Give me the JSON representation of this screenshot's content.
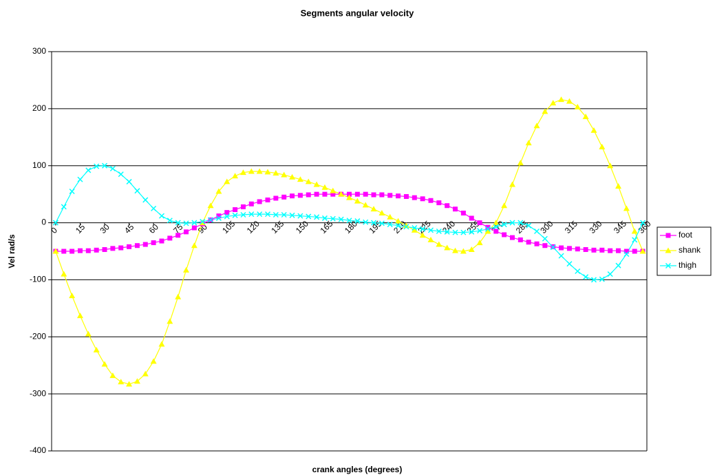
{
  "chart_data": {
    "type": "line",
    "title": "Segments angular velocity",
    "x_label": "crank angles (degrees)",
    "y_label": "Vel rad/s",
    "categories": [
      "0",
      null,
      null,
      "15",
      null,
      null,
      "30",
      null,
      null,
      "45",
      null,
      null,
      "60",
      null,
      null,
      "75",
      null,
      null,
      "90",
      null,
      null,
      "105",
      null,
      null,
      "120",
      null,
      null,
      "135",
      null,
      null,
      "150",
      null,
      null,
      "165",
      null,
      null,
      "180",
      null,
      null,
      "195",
      null,
      null,
      "210",
      null,
      null,
      "225",
      null,
      null,
      "240",
      null,
      null,
      "255",
      null,
      null,
      "270",
      null,
      null,
      "285",
      null,
      null,
      "300",
      null,
      null,
      "315",
      null,
      null,
      "330",
      null,
      null,
      "345",
      null,
      null,
      "360"
    ],
    "series": [
      {
        "name": "foot",
        "color": "#ff00ff",
        "marker": "square",
        "values": [
          -50,
          -50,
          -50,
          -49,
          -49,
          -48,
          -47,
          -45,
          -44,
          -42,
          -40,
          -38,
          -35,
          -32,
          -27,
          -22,
          -16,
          -9,
          -2,
          5,
          12,
          18,
          23,
          28,
          33,
          37,
          40,
          43,
          45,
          47,
          48,
          49,
          50,
          50,
          50,
          50,
          50,
          50,
          50,
          49,
          49,
          48,
          47,
          46,
          44,
          42,
          39,
          35,
          30,
          24,
          17,
          8,
          0,
          -8,
          -15,
          -21,
          -26,
          -30,
          -34,
          -37,
          -40,
          -42,
          -44,
          -45,
          -46,
          -47,
          -48,
          -48,
          -49,
          -49,
          -50,
          -50,
          -50
        ]
      },
      {
        "name": "shank",
        "color": "#ffff00",
        "marker": "triangle",
        "values": [
          -50,
          -90,
          -128,
          -163,
          -195,
          -223,
          -248,
          -268,
          -279,
          -283,
          -278,
          -265,
          -243,
          -213,
          -173,
          -130,
          -83,
          -40,
          0,
          30,
          55,
          72,
          82,
          88,
          90,
          90,
          89,
          87,
          84,
          80,
          76,
          72,
          67,
          62,
          56,
          50,
          44,
          38,
          31,
          24,
          17,
          10,
          3,
          -5,
          -13,
          -22,
          -30,
          -38,
          -44,
          -49,
          -50,
          -47,
          -35,
          -15,
          0,
          30,
          67,
          105,
          140,
          170,
          195,
          210,
          216,
          213,
          203,
          186,
          162,
          133,
          100,
          64,
          25,
          -15,
          -50
        ]
      },
      {
        "name": "thigh",
        "color": "#00ffff",
        "marker": "x",
        "values": [
          0,
          28,
          55,
          76,
          92,
          99,
          100,
          95,
          85,
          72,
          56,
          40,
          25,
          12,
          4,
          0,
          -1,
          0,
          2,
          5,
          8,
          11,
          13,
          14,
          15,
          15,
          15,
          14,
          14,
          13,
          12,
          11,
          10,
          8,
          7,
          6,
          4,
          3,
          1,
          0,
          -1,
          -3,
          -5,
          -7,
          -9,
          -11,
          -13,
          -15,
          -16,
          -17,
          -17,
          -16,
          -14,
          -11,
          -7,
          -3,
          0,
          0,
          -5,
          -15,
          -28,
          -43,
          -58,
          -72,
          -85,
          -95,
          -100,
          -99,
          -90,
          -75,
          -55,
          -30,
          0
        ]
      }
    ],
    "ylim": [
      -400,
      300
    ],
    "yticks": [
      -400,
      -300,
      -200,
      -100,
      0,
      100,
      200,
      300
    ],
    "grid": true,
    "legend": "right"
  }
}
